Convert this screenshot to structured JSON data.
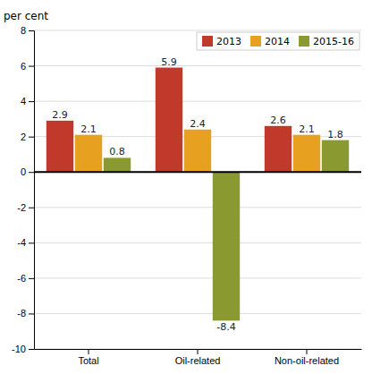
{
  "chart_data": {
    "type": "bar",
    "categories": [
      "Total",
      "Oil-related",
      "Non-oil-related"
    ],
    "series": [
      {
        "name": "2013",
        "color": "#c0392b",
        "values": [
          2.9,
          5.9,
          2.6
        ]
      },
      {
        "name": "2014",
        "color": "#e8a020",
        "values": [
          2.1,
          2.4,
          2.1
        ]
      },
      {
        "name": "2015-16",
        "color": "#8a9a30",
        "values": [
          0.8,
          -8.4,
          1.8
        ]
      }
    ],
    "ylabel": "per cent",
    "ylim": [
      -10,
      8
    ],
    "yticks": [
      -10,
      -8,
      -6,
      -4,
      -2,
      0,
      2,
      4,
      6,
      8
    ],
    "grid": true,
    "legend": "upper right",
    "data_labels": true
  }
}
